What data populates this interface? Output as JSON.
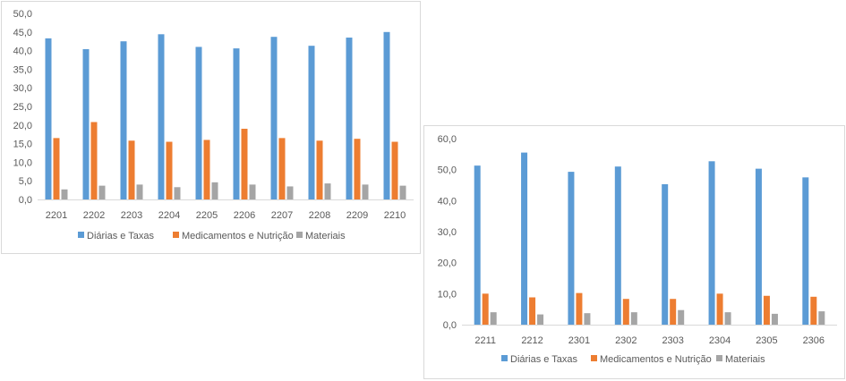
{
  "chart_data": [
    {
      "type": "bar",
      "categories": [
        "2201",
        "2202",
        "2203",
        "2204",
        "2205",
        "2206",
        "2207",
        "2208",
        "2209",
        "2210"
      ],
      "series": [
        {
          "name": "Diárias e Taxas",
          "color": "#5b9bd5",
          "values": [
            43.3,
            40.4,
            42.5,
            44.4,
            41.0,
            40.6,
            43.7,
            41.3,
            43.5,
            45.0
          ]
        },
        {
          "name": "Medicamentos e Nutrição",
          "color": "#ed7d31",
          "values": [
            16.5,
            20.8,
            15.8,
            15.5,
            16.0,
            19.0,
            16.5,
            15.8,
            16.3,
            15.5
          ]
        },
        {
          "name": "Materiais",
          "color": "#a5a5a5",
          "values": [
            2.7,
            3.7,
            4.0,
            3.3,
            4.6,
            4.0,
            3.5,
            4.3,
            4.0,
            3.7
          ]
        }
      ],
      "ylim": [
        0,
        50
      ],
      "yticks": [
        "0,0",
        "5,0",
        "10,0",
        "15,0",
        "20,0",
        "25,0",
        "30,0",
        "35,0",
        "40,0",
        "45,0",
        "50,0"
      ],
      "legend_position": "bottom",
      "grid": false
    },
    {
      "type": "bar",
      "categories": [
        "2211",
        "2212",
        "2301",
        "2302",
        "2303",
        "2304",
        "2305",
        "2306"
      ],
      "series": [
        {
          "name": "Diárias e Taxas",
          "color": "#5b9bd5",
          "values": [
            51.3,
            55.5,
            49.3,
            51.0,
            45.3,
            52.7,
            50.3,
            47.5
          ]
        },
        {
          "name": "Medicamentos e Nutrição",
          "color": "#ed7d31",
          "values": [
            10.0,
            8.8,
            10.2,
            8.3,
            8.3,
            10.0,
            9.3,
            9.0
          ]
        },
        {
          "name": "Materiais",
          "color": "#a5a5a5",
          "values": [
            4.0,
            3.3,
            3.7,
            4.0,
            4.7,
            4.0,
            3.5,
            4.3
          ]
        }
      ],
      "ylim": [
        0,
        60
      ],
      "yticks": [
        "0,0",
        "10,0",
        "20,0",
        "30,0",
        "40,0",
        "50,0",
        "60,0"
      ],
      "legend_position": "bottom",
      "grid": false
    }
  ]
}
